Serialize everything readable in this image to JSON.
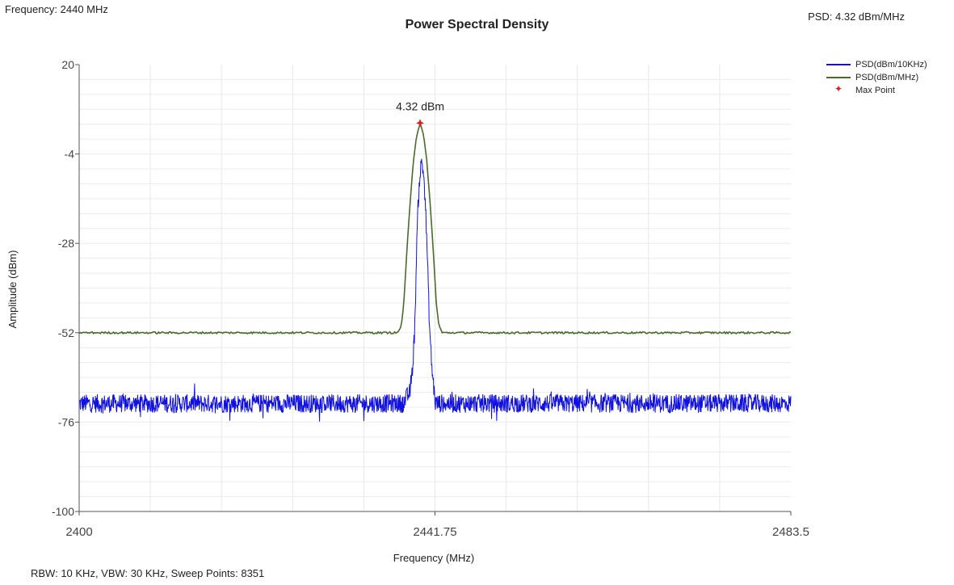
{
  "header": {
    "frequency_readout": "Frequency: 2440 MHz",
    "psd_readout": "PSD: 4.32 dBm/MHz"
  },
  "footer": {
    "info": "RBW: 10 KHz,  VBW: 30 KHz,  Sweep Points: 8351"
  },
  "chart_data": {
    "type": "line",
    "title": "Power Spectral Density",
    "xlabel": "Frequency (MHz)",
    "ylabel": "Amplitude (dBm)",
    "xlim": [
      2400,
      2483.5
    ],
    "ylim": [
      -100,
      20
    ],
    "x_ticks": [
      "2400",
      "2441.75",
      "2483.5"
    ],
    "y_ticks": [
      "20",
      "-4",
      "-28",
      "-52",
      "-76",
      "-100"
    ],
    "grid": true,
    "legend_position": "top-right",
    "series": [
      {
        "name": "PSD(dBm/10KHz)",
        "color": "#1010e0",
        "x": [
          2400,
          2438.0,
          2438.8,
          2439.1,
          2439.4,
          2439.6,
          2439.8,
          2440.0,
          2440.2,
          2440.4,
          2440.6,
          2440.8,
          2441.1,
          2441.4,
          2441.8,
          2483.5
        ],
        "y": [
          -71,
          -71,
          -68,
          -62,
          -50,
          -28,
          -16,
          -9,
          -6,
          -9,
          -16,
          -28,
          -50,
          -62,
          -71,
          -71
        ],
        "noise_floor": -71
      },
      {
        "name": "PSD(dBm/MHz)",
        "color": "#4a6b2a",
        "x": [
          2400,
          2437.4,
          2437.8,
          2438.1,
          2438.4,
          2438.8,
          2439.2,
          2439.6,
          2440.0,
          2440.4,
          2440.8,
          2441.2,
          2441.6,
          2441.9,
          2442.2,
          2442.6,
          2483.5
        ],
        "y": [
          -52,
          -52,
          -50,
          -44,
          -32,
          -18,
          -6,
          1,
          4.32,
          1,
          -6,
          -18,
          -32,
          -44,
          -50,
          -52,
          -52
        ]
      }
    ],
    "max_point": {
      "name": "Max Point",
      "x": 2440,
      "y": 4.32,
      "label": "4.32 dBm",
      "color": "#e0201b"
    }
  }
}
